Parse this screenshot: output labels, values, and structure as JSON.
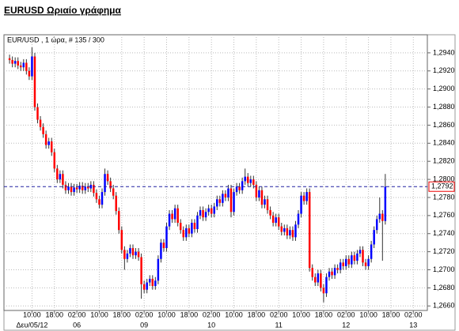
{
  "chart_data": {
    "type": "candlestick",
    "title": "EURUSD Ωριαίο γράφημα",
    "subtitle": "EUR/USD , 1 ώρα, # 135 / 300",
    "up_color": "#0000ff",
    "down_color": "#ff0000",
    "grid": true,
    "xlim": [
      -2,
      149
    ],
    "ylim": [
      1.2655,
      1.296
    ],
    "yticks": [
      {
        "value": 1.266,
        "label": "1,2660"
      },
      {
        "value": 1.268,
        "label": "1,2680"
      },
      {
        "value": 1.27,
        "label": "1,2700"
      },
      {
        "value": 1.272,
        "label": "1,2720"
      },
      {
        "value": 1.274,
        "label": "1,2740"
      },
      {
        "value": 1.276,
        "label": "1,2760"
      },
      {
        "value": 1.278,
        "label": "1,2780"
      },
      {
        "value": 1.28,
        "label": "1,2800"
      },
      {
        "value": 1.282,
        "label": "1,2820"
      },
      {
        "value": 1.284,
        "label": "1,2840"
      },
      {
        "value": 1.286,
        "label": "1,2860"
      },
      {
        "value": 1.288,
        "label": "1,2880"
      },
      {
        "value": 1.29,
        "label": "1,2900"
      },
      {
        "value": 1.292,
        "label": "1,2920"
      },
      {
        "value": 1.294,
        "label": "1,2940"
      }
    ],
    "xticks": [
      {
        "value": 8,
        "label": "10:00"
      },
      {
        "value": 16,
        "label": "18:00"
      },
      {
        "value": 24,
        "label": "02:00"
      },
      {
        "value": 32,
        "label": "10:00"
      },
      {
        "value": 40,
        "label": "18:00"
      },
      {
        "value": 48,
        "label": "02:00"
      },
      {
        "value": 56,
        "label": "10:00"
      },
      {
        "value": 64,
        "label": "18:00"
      },
      {
        "value": 72,
        "label": "02:00"
      },
      {
        "value": 80,
        "label": "10:00"
      },
      {
        "value": 88,
        "label": "18:00"
      },
      {
        "value": 96,
        "label": "02:00"
      },
      {
        "value": 104,
        "label": "10:00"
      },
      {
        "value": 112,
        "label": "18:00"
      },
      {
        "value": 120,
        "label": "02:00"
      },
      {
        "value": 128,
        "label": "10:00"
      },
      {
        "value": 136,
        "label": "18:00"
      },
      {
        "value": 144,
        "label": "02:00"
      }
    ],
    "date_ticks": [
      {
        "value": 8,
        "label": "Δευ/05/12"
      },
      {
        "value": 24,
        "label": "06"
      },
      {
        "value": 48,
        "label": "09"
      },
      {
        "value": 72,
        "label": "10"
      },
      {
        "value": 96,
        "label": "11"
      },
      {
        "value": 120,
        "label": "12"
      },
      {
        "value": 144,
        "label": "13"
      }
    ],
    "last_price": {
      "value": 1.2792,
      "label": "1,2792"
    },
    "open": [
      1.2934,
      1.2932,
      1.2928,
      1.2931,
      1.2926,
      1.2924,
      1.2929,
      1.292,
      1.2914,
      1.2936,
      1.288,
      1.2866,
      1.2858,
      1.285,
      1.2838,
      1.2842,
      1.283,
      1.2812,
      1.28,
      1.2806,
      1.2794,
      1.2788,
      1.2792,
      1.2786,
      1.2791,
      1.2789,
      1.2793,
      1.2788,
      1.2792,
      1.279,
      1.2794,
      1.2785,
      1.2778,
      1.2772,
      1.2786,
      1.2806,
      1.2798,
      1.279,
      1.2782,
      1.2765,
      1.2744,
      1.2722,
      1.2712,
      1.2718,
      1.2724,
      1.2716,
      1.272,
      1.2714,
      1.2684,
      1.2678,
      1.2686,
      1.269,
      1.2682,
      1.2688,
      1.2712,
      1.273,
      1.2724,
      1.2748,
      1.2762,
      1.2756,
      1.2768,
      1.2752,
      1.2744,
      1.2736,
      1.2746,
      1.274,
      1.2752,
      1.2745,
      1.276,
      1.2766,
      1.2758,
      1.2764,
      1.2768,
      1.2762,
      1.277,
      1.2778,
      1.2774,
      1.2784,
      1.278,
      1.279,
      1.2764,
      1.2786,
      1.2792,
      1.2788,
      1.2798,
      1.2803,
      1.2796,
      1.28,
      1.2794,
      1.278,
      1.2788,
      1.2772,
      1.2778,
      1.2766,
      1.276,
      1.2752,
      1.2758,
      1.2748,
      1.2742,
      1.2746,
      1.2738,
      1.2744,
      1.2736,
      1.275,
      1.2762,
      1.2782,
      1.2776,
      1.2786,
      1.2702,
      1.2692,
      1.2686,
      1.2696,
      1.268,
      1.2674,
      1.2692,
      1.2698,
      1.2694,
      1.2702,
      1.27,
      1.2708,
      1.2704,
      1.2712,
      1.2706,
      1.2716,
      1.271,
      1.2718,
      1.2722,
      1.2708,
      1.2704,
      1.2712,
      1.2728,
      1.2744,
      1.2756,
      1.2762,
      1.2754
    ],
    "high": [
      1.2938,
      1.2936,
      1.2935,
      1.2935,
      1.293,
      1.2933,
      1.2933,
      1.2924,
      1.2946,
      1.294,
      1.2884,
      1.287,
      1.2862,
      1.2854,
      1.2846,
      1.2846,
      1.2834,
      1.2816,
      1.281,
      1.281,
      1.2798,
      1.2796,
      1.2796,
      1.2795,
      1.2795,
      1.2797,
      1.2797,
      1.2796,
      1.2796,
      1.2798,
      1.2798,
      1.2789,
      1.2782,
      1.279,
      1.2812,
      1.281,
      1.2802,
      1.2794,
      1.2786,
      1.2769,
      1.2748,
      1.2726,
      1.2722,
      1.2728,
      1.2728,
      1.2724,
      1.2724,
      1.2718,
      1.2688,
      1.269,
      1.2694,
      1.2694,
      1.2692,
      1.2716,
      1.2734,
      1.2734,
      1.2752,
      1.2766,
      1.2766,
      1.2772,
      1.2772,
      1.2756,
      1.2748,
      1.275,
      1.275,
      1.2756,
      1.2756,
      1.2764,
      1.277,
      1.277,
      1.2768,
      1.2772,
      1.2772,
      1.2774,
      1.2782,
      1.2782,
      1.2788,
      1.2788,
      1.2794,
      1.2794,
      1.279,
      1.2796,
      1.2796,
      1.2802,
      1.2812,
      1.2807,
      1.2804,
      1.2804,
      1.2798,
      1.2792,
      1.2792,
      1.2782,
      1.2782,
      1.277,
      1.2764,
      1.2762,
      1.2762,
      1.2752,
      1.275,
      1.275,
      1.2748,
      1.2748,
      1.2754,
      1.2766,
      1.2786,
      1.2786,
      1.279,
      1.279,
      1.2706,
      1.2696,
      1.27,
      1.27,
      1.2684,
      1.2696,
      1.2702,
      1.2702,
      1.2706,
      1.2706,
      1.2712,
      1.2712,
      1.2716,
      1.2716,
      1.272,
      1.272,
      1.2722,
      1.2726,
      1.2726,
      1.2712,
      1.2716,
      1.2732,
      1.2748,
      1.276,
      1.278,
      1.2766,
      1.2806
    ],
    "low": [
      1.2928,
      1.2924,
      1.2924,
      1.2922,
      1.292,
      1.292,
      1.2916,
      1.291,
      1.291,
      1.2876,
      1.2862,
      1.2854,
      1.2846,
      1.2834,
      1.2834,
      1.2826,
      1.2808,
      1.2796,
      1.2796,
      1.279,
      1.2784,
      1.2784,
      1.2782,
      1.2782,
      1.2785,
      1.2785,
      1.2784,
      1.2784,
      1.2786,
      1.2786,
      1.2781,
      1.2774,
      1.2768,
      1.2768,
      1.2782,
      1.2794,
      1.2786,
      1.2778,
      1.2761,
      1.274,
      1.2718,
      1.27,
      1.2708,
      1.2714,
      1.2712,
      1.2712,
      1.271,
      1.2668,
      1.2674,
      1.2674,
      1.2682,
      1.2678,
      1.2678,
      1.2684,
      1.2708,
      1.272,
      1.272,
      1.2744,
      1.2752,
      1.2752,
      1.2748,
      1.274,
      1.2732,
      1.2732,
      1.2736,
      1.2736,
      1.2741,
      1.2741,
      1.2756,
      1.2754,
      1.2754,
      1.276,
      1.2758,
      1.2758,
      1.2766,
      1.277,
      1.277,
      1.2776,
      1.2776,
      1.2758,
      1.276,
      1.2782,
      1.2784,
      1.2784,
      1.2794,
      1.2792,
      1.2792,
      1.279,
      1.2776,
      1.2776,
      1.2768,
      1.2768,
      1.2762,
      1.2756,
      1.2748,
      1.2748,
      1.2744,
      1.2738,
      1.2738,
      1.2734,
      1.2734,
      1.2732,
      1.2732,
      1.2746,
      1.2758,
      1.2772,
      1.2772,
      1.2698,
      1.2688,
      1.2682,
      1.2682,
      1.2676,
      1.2664,
      1.267,
      1.2688,
      1.269,
      1.269,
      1.2696,
      1.2696,
      1.27,
      1.27,
      1.2702,
      1.2702,
      1.2706,
      1.2706,
      1.2714,
      1.2704,
      1.27,
      1.27,
      1.2708,
      1.2724,
      1.274,
      1.2752,
      1.271,
      1.275
    ],
    "close": [
      1.2932,
      1.2928,
      1.2931,
      1.2926,
      1.2924,
      1.2929,
      1.292,
      1.2914,
      1.2936,
      1.288,
      1.2866,
      1.2858,
      1.285,
      1.2838,
      1.2842,
      1.283,
      1.2812,
      1.28,
      1.2806,
      1.2794,
      1.2788,
      1.2792,
      1.2786,
      1.2791,
      1.2789,
      1.2793,
      1.2788,
      1.2792,
      1.279,
      1.2794,
      1.2785,
      1.2778,
      1.2772,
      1.2786,
      1.2806,
      1.2798,
      1.279,
      1.2782,
      1.2765,
      1.2744,
      1.2722,
      1.2712,
      1.2718,
      1.2724,
      1.2716,
      1.272,
      1.2714,
      1.2684,
      1.2678,
      1.2686,
      1.269,
      1.2682,
      1.2688,
      1.2712,
      1.273,
      1.2724,
      1.2748,
      1.2762,
      1.2756,
      1.2768,
      1.2752,
      1.2744,
      1.2736,
      1.2746,
      1.274,
      1.2752,
      1.2745,
      1.276,
      1.2766,
      1.2758,
      1.2764,
      1.2768,
      1.2762,
      1.277,
      1.2778,
      1.2774,
      1.2784,
      1.278,
      1.279,
      1.2764,
      1.2786,
      1.2792,
      1.2788,
      1.2798,
      1.2803,
      1.2796,
      1.28,
      1.2794,
      1.278,
      1.2788,
      1.2772,
      1.2778,
      1.2766,
      1.276,
      1.2752,
      1.2758,
      1.2748,
      1.2742,
      1.2746,
      1.2738,
      1.2744,
      1.2736,
      1.275,
      1.2762,
      1.2782,
      1.2776,
      1.2786,
      1.2702,
      1.2692,
      1.2686,
      1.2696,
      1.268,
      1.2674,
      1.2692,
      1.2698,
      1.2694,
      1.2702,
      1.27,
      1.2708,
      1.2704,
      1.2712,
      1.2706,
      1.2716,
      1.271,
      1.2718,
      1.2722,
      1.2708,
      1.2704,
      1.2712,
      1.2728,
      1.2744,
      1.2756,
      1.2762,
      1.2754,
      1.2792
    ]
  }
}
